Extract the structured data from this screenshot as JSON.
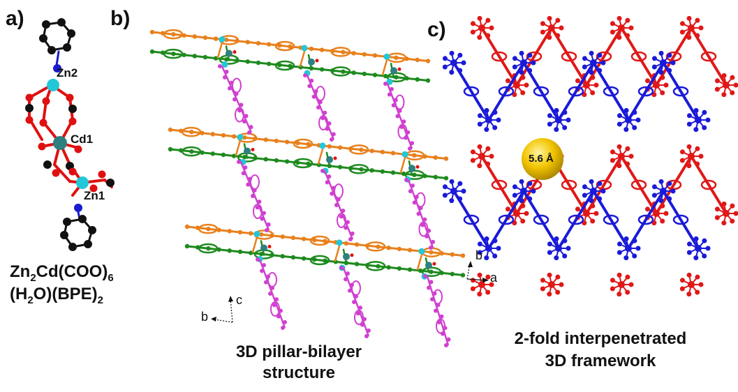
{
  "panels": {
    "a": {
      "letter": "a)",
      "atoms": {
        "zn2": "Zn2",
        "cd1": "Cd1",
        "zn1": "Zn1"
      },
      "formula": {
        "line1_prefix": "Zn",
        "line1_sub": "2",
        "line1_rest": "Cd(COO)",
        "line1_sub2": "6",
        "line2_prefix": "(H",
        "line2_sub": "2",
        "line2_mid": "O)(BPE)",
        "line2_sub2": "2"
      }
    },
    "b": {
      "letter": "b)",
      "axes": {
        "vertical": "c",
        "horizontal": "b"
      },
      "caption_line1": "3D pillar-bilayer",
      "caption_line2": "structure"
    },
    "c": {
      "letter": "c)",
      "axes": {
        "vertical": "b",
        "horizontal": "a"
      },
      "pore_label": "5.6 Å",
      "caption_line1": "2-fold interpenetrated",
      "caption_line2": "3D framework"
    }
  },
  "colors": {
    "carbon": "#111111",
    "oxygen": "#e01010",
    "nitrogen": "#1a1ad0",
    "zinc": "#22c8d8",
    "cadmium": "#2e7f80",
    "orange_layer": "#e8801c",
    "green_layer": "#1e8a1e",
    "pillar": "#d040d0",
    "net_red": "#e01818",
    "net_blue": "#1a1ad8",
    "pore": "#f2c400"
  }
}
